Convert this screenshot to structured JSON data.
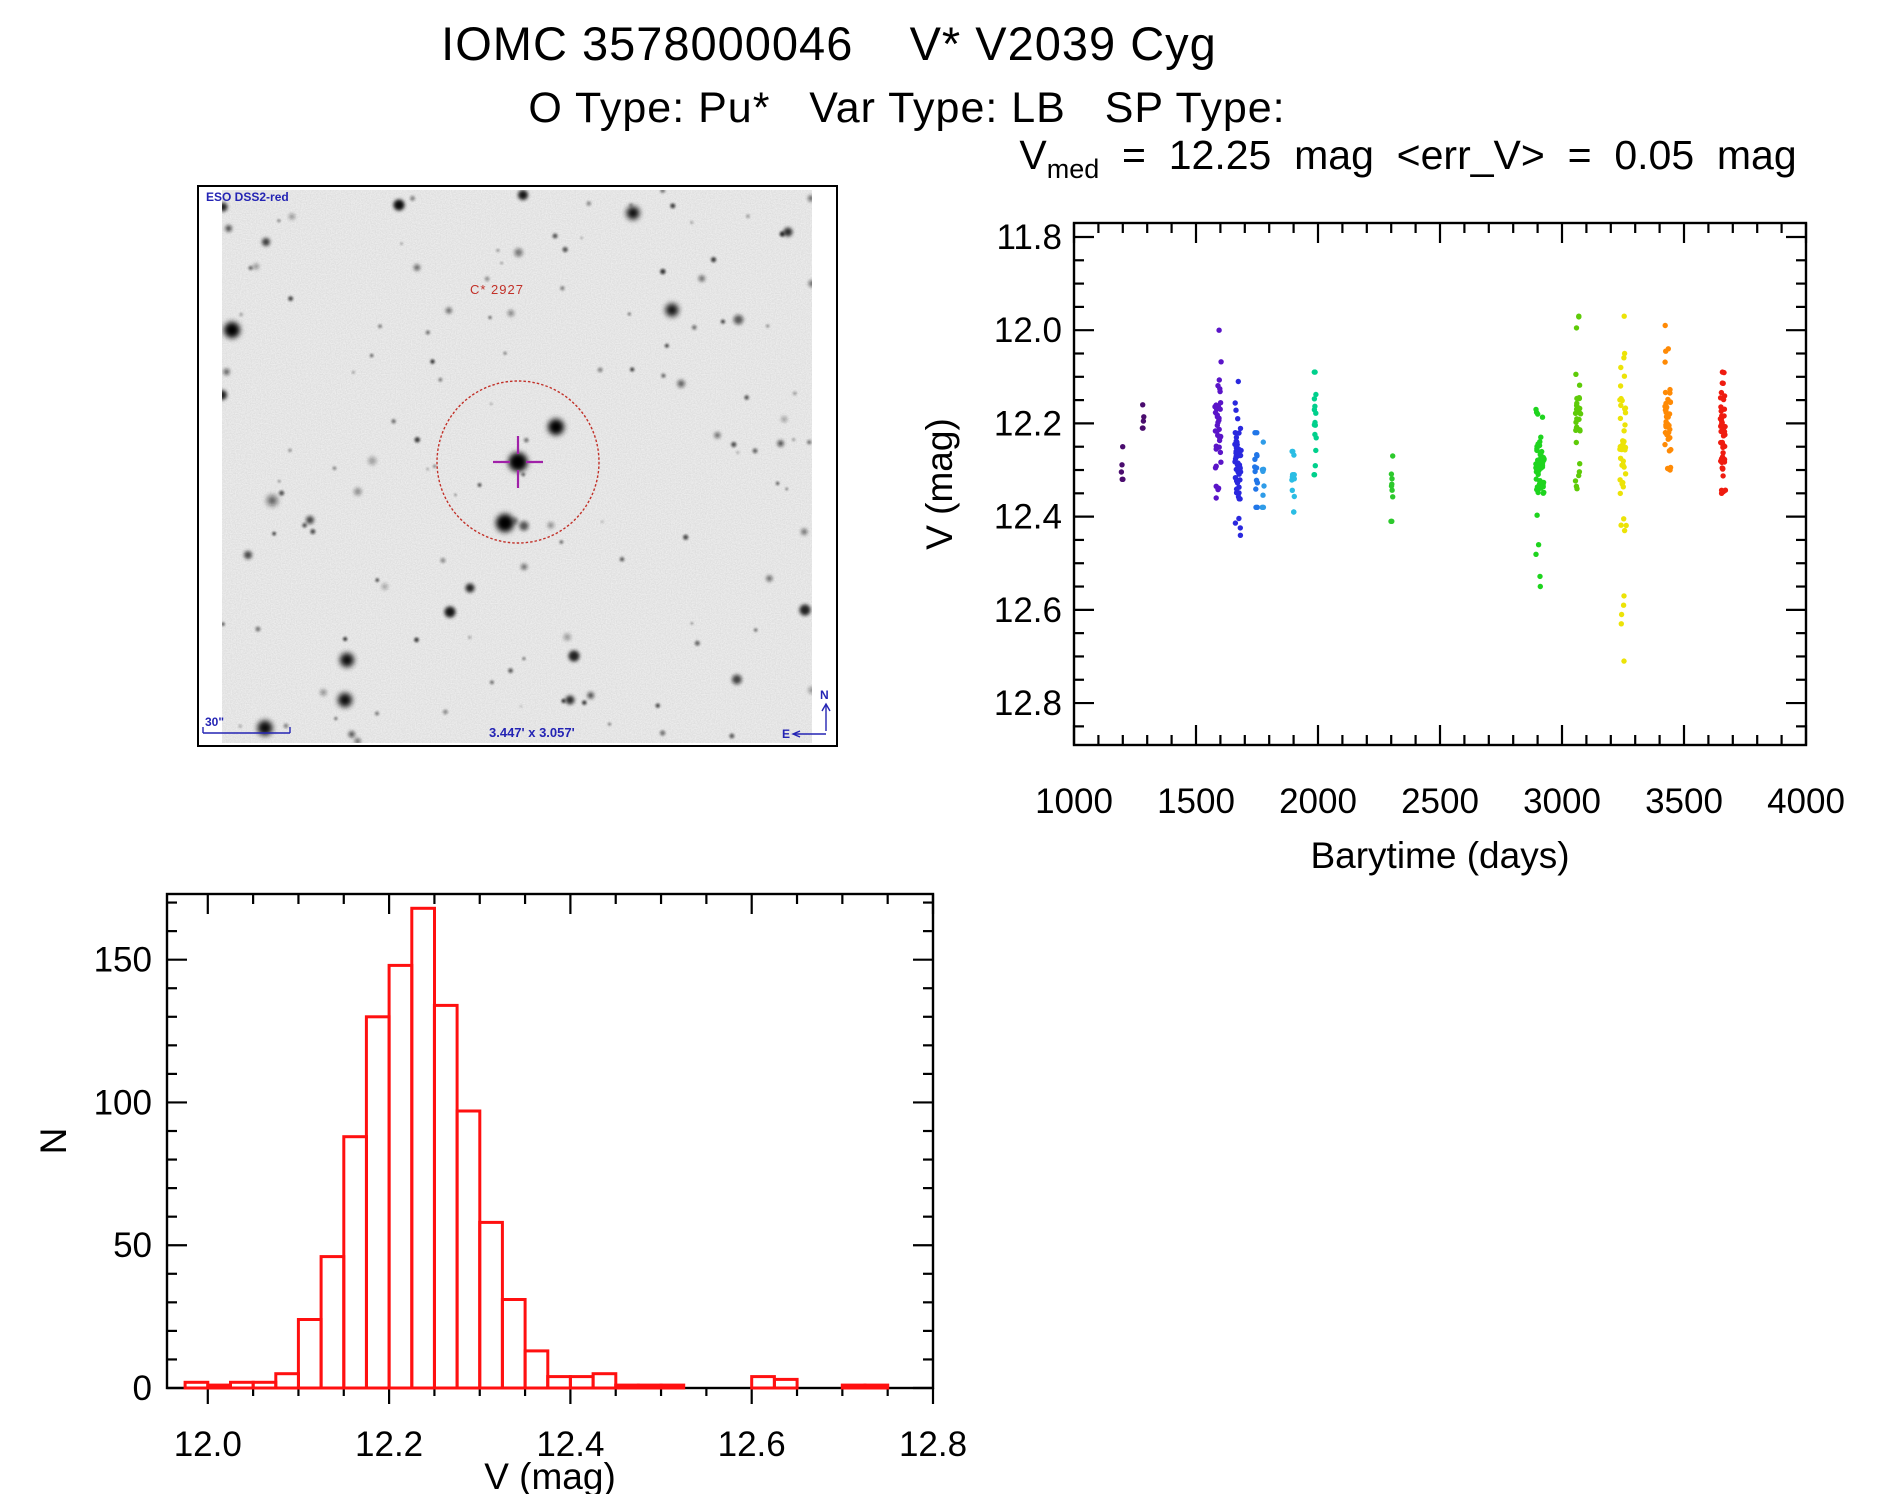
{
  "page": {
    "title": "IOMC 3578000046    V* V2039 Cyg",
    "subtitle": "O Type: Pu*   Var Type: LB   SP Type:",
    "background": "#ffffff",
    "axes_color": "#000000"
  },
  "finder_chart": {
    "survey_label": "ESO DSS2-red",
    "target_label": "C* 2927",
    "scale_bar_label": "30\"",
    "field_size_label": "3.447' x 3.057'",
    "compass_north": "N",
    "compass_east": "E",
    "annotation_color": "#2424b4",
    "marker_color": "#c23028",
    "crosshair_color": "#a021a8"
  },
  "chart_data": [
    {
      "id": "lightcurve",
      "type": "scatter",
      "title": "V_med = 12.25 mag <err_V> = 0.05 mag",
      "header_parts": {
        "prefix": "V",
        "sub": "med",
        "rest": "  =  12.25  mag  <err_V>  =  0.05  mag"
      },
      "xlabel": "Barytime (days)",
      "ylabel": "V (mag)",
      "xlim": [
        1000,
        4000
      ],
      "ylim": [
        12.89,
        11.77
      ],
      "y_axis_reversed": true,
      "grid": false,
      "legend": "none",
      "xticks": [
        1000,
        1500,
        2000,
        2500,
        3000,
        3500,
        4000
      ],
      "yticks": [
        11.8,
        12.0,
        12.2,
        12.4,
        12.6,
        12.8
      ],
      "x_minor_step": 100,
      "y_minor_step": 0.05,
      "point_radius": 2.7,
      "clusters": [
        {
          "day": 1197,
          "n": 5,
          "spread_days": 8,
          "v_min": 12.25,
          "v_max": 12.32,
          "color": "#4a0c6e"
        },
        {
          "day": 1283,
          "n": 5,
          "spread_days": 6,
          "v_min": 12.16,
          "v_max": 12.21,
          "color": "#4a0c6e"
        },
        {
          "day": 1590,
          "n": 38,
          "spread_days": 26,
          "v_min": 12.0,
          "v_max": 12.36,
          "v_core_min": 12.11,
          "v_core_max": 12.33,
          "color": "#5a14c8"
        },
        {
          "day": 1672,
          "n": 52,
          "spread_days": 26,
          "v_min": 12.11,
          "v_max": 12.44,
          "v_core_min": 12.2,
          "v_core_max": 12.4,
          "color": "#2a28de"
        },
        {
          "day": 1746,
          "n": 13,
          "spread_days": 12,
          "v_min": 12.22,
          "v_max": 12.38,
          "color": "#2176e8"
        },
        {
          "day": 1775,
          "n": 9,
          "spread_days": 8,
          "v_min": 12.24,
          "v_max": 12.38,
          "color": "#2f9ce8"
        },
        {
          "day": 1898,
          "n": 13,
          "spread_days": 10,
          "v_min": 12.26,
          "v_max": 12.39,
          "color": "#2bbde4"
        },
        {
          "day": 1988,
          "n": 16,
          "spread_days": 12,
          "v_min": 12.09,
          "v_max": 12.31,
          "color": "#00d08c"
        },
        {
          "day": 2303,
          "n": 9,
          "spread_days": 8,
          "v_min": 12.27,
          "v_max": 12.41,
          "color": "#2cc92c"
        },
        {
          "day": 2910,
          "n": 62,
          "spread_days": 34,
          "v_min": 12.17,
          "v_max": 12.55,
          "v_core_min": 12.21,
          "v_core_max": 12.37,
          "color": "#1ed41e"
        },
        {
          "day": 3066,
          "n": 34,
          "spread_days": 22,
          "v_min": 11.97,
          "v_max": 12.34,
          "v_core_min": 12.08,
          "v_core_max": 12.32,
          "color": "#5ecb08"
        },
        {
          "day": 3250,
          "n": 48,
          "spread_days": 26,
          "v_min": 12.05,
          "v_max": 12.43,
          "v_core_min": 12.1,
          "v_core_max": 12.4,
          "color": "#ece307",
          "outliers": [
            11.97,
            12.57,
            12.59,
            12.61,
            12.63,
            12.71
          ]
        },
        {
          "day": 3434,
          "n": 40,
          "spread_days": 24,
          "v_min": 12.04,
          "v_max": 12.3,
          "v_core_min": 12.08,
          "v_core_max": 12.29,
          "color": "#ff8a05",
          "outliers": [
            11.99
          ]
        },
        {
          "day": 3660,
          "n": 46,
          "spread_days": 22,
          "v_min": 12.09,
          "v_max": 12.35,
          "v_core_min": 12.12,
          "v_core_max": 12.34,
          "color": "#ef1c10"
        }
      ]
    },
    {
      "id": "histogram",
      "type": "bar",
      "title": "",
      "xlabel": "V (mag)",
      "ylabel": "N",
      "xlim": [
        11.955,
        12.8
      ],
      "ylim": [
        0,
        173
      ],
      "grid": false,
      "xticks": [
        12.0,
        12.2,
        12.4,
        12.6,
        12.8
      ],
      "yticks": [
        0,
        50,
        100,
        150
      ],
      "x_minor_step": 0.05,
      "y_minor_step": 10,
      "bin_start": 11.975,
      "bin_width": 0.025,
      "counts": [
        2,
        1,
        2,
        2,
        5,
        24,
        46,
        88,
        130,
        148,
        168,
        134,
        97,
        58,
        31,
        13,
        4,
        4,
        5,
        1,
        1,
        1,
        0,
        0,
        0,
        4,
        3,
        0,
        0,
        1,
        1,
        0
      ],
      "bar_color": "#ff1010"
    }
  ]
}
